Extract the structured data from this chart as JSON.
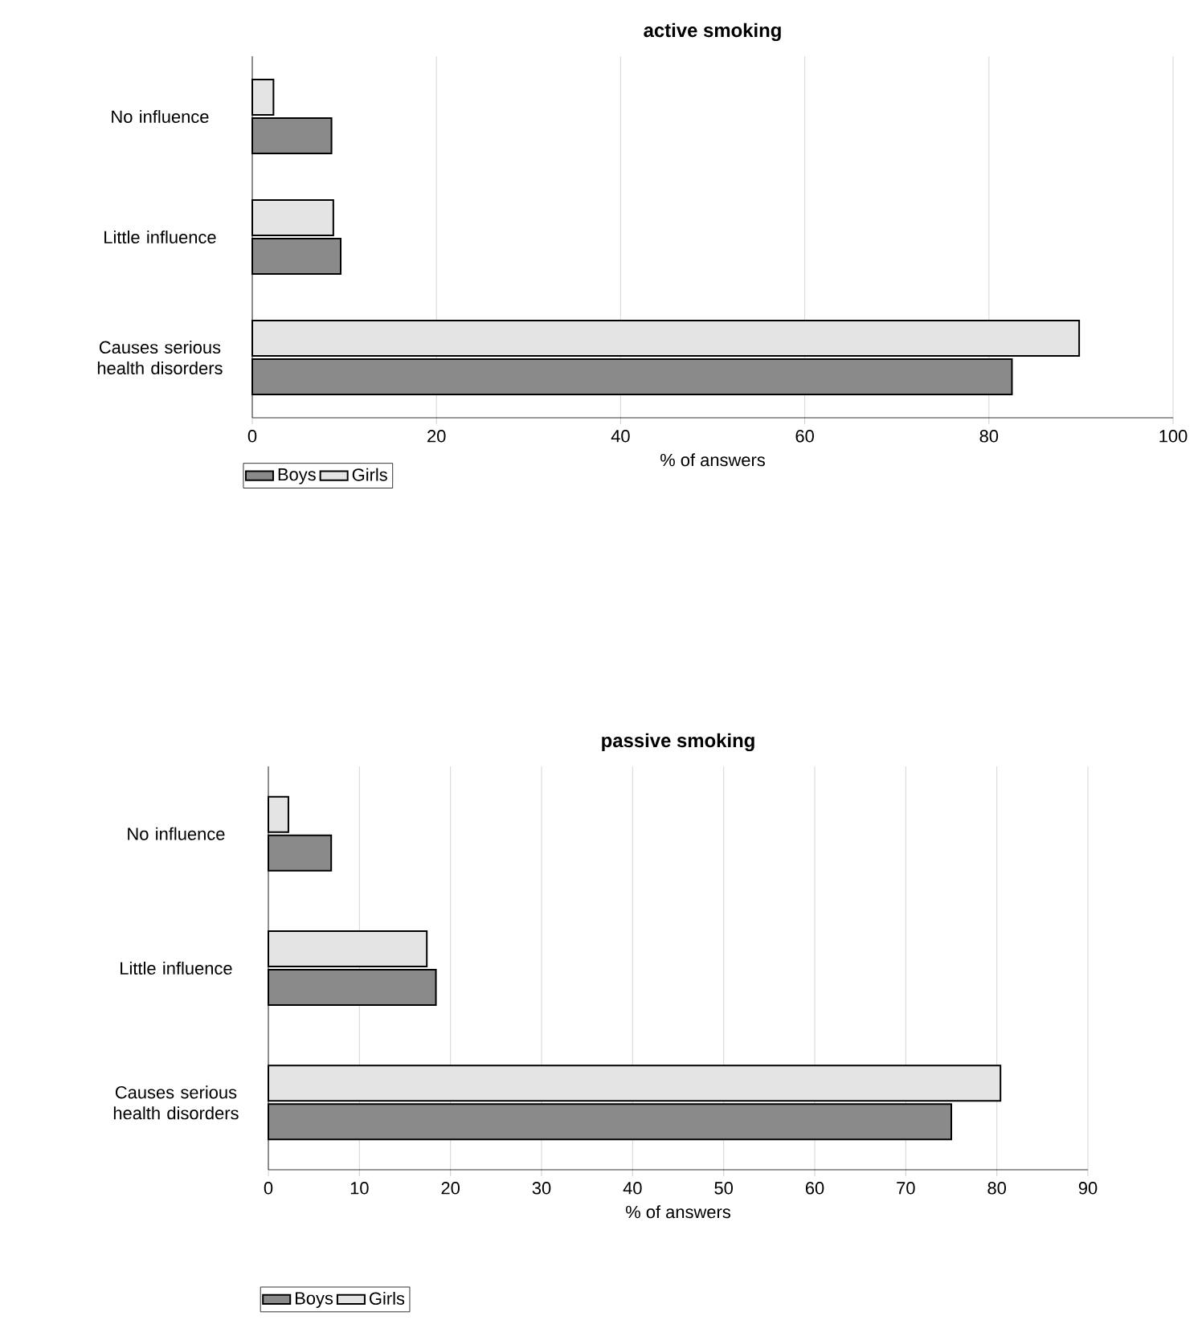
{
  "chart_data": [
    {
      "type": "bar",
      "orientation": "horizontal",
      "title": "active smoking",
      "xlabel": "% of answers",
      "categories": [
        "No influence",
        "Little influence",
        "Causes serious health disorders"
      ],
      "series": [
        {
          "name": "Boys",
          "color": "#8a8a8a",
          "values": [
            8.6,
            9.6,
            82.5
          ]
        },
        {
          "name": "Girls",
          "color": "#e4e4e4",
          "values": [
            2.3,
            8.8,
            89.8
          ]
        }
      ],
      "xlim": [
        0,
        100
      ],
      "xticks": [
        0,
        20,
        40,
        60,
        80,
        100
      ],
      "grid": "x",
      "legend": "bottom left"
    },
    {
      "type": "bar",
      "orientation": "horizontal",
      "title": "passive smoking",
      "xlabel": "% of answers",
      "categories": [
        "No influence",
        "Little influence",
        "Causes serious health disorders"
      ],
      "series": [
        {
          "name": "Boys",
          "color": "#8a8a8a",
          "values": [
            6.9,
            18.4,
            75.0
          ]
        },
        {
          "name": "Girls",
          "color": "#e4e4e4",
          "values": [
            2.2,
            17.4,
            80.4
          ]
        }
      ],
      "xlim": [
        0,
        90
      ],
      "xticks": [
        0,
        10,
        20,
        30,
        40,
        50,
        60,
        70,
        80,
        90
      ],
      "grid": "x",
      "legend": "bottom left"
    }
  ]
}
